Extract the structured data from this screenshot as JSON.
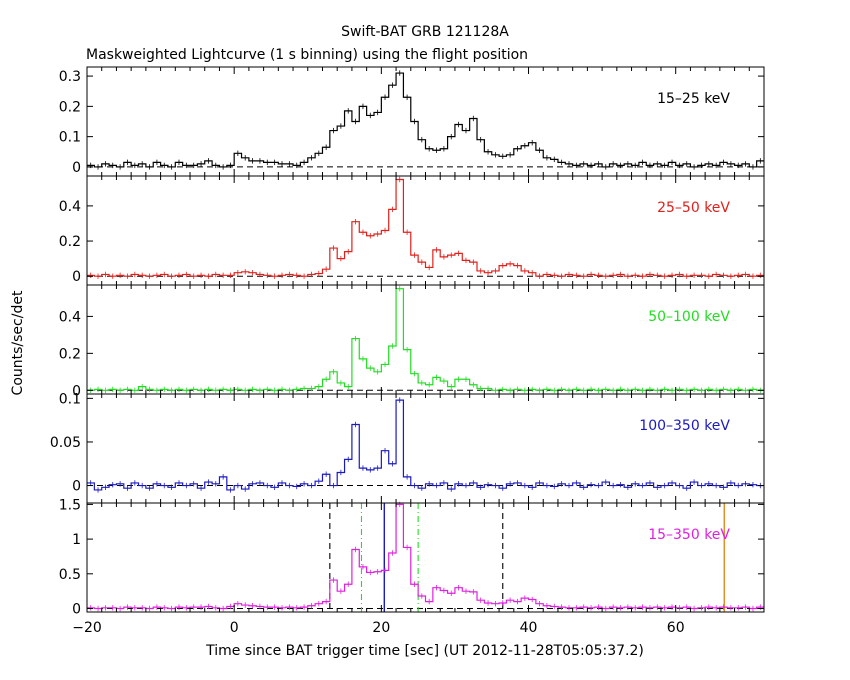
{
  "title": "Swift-BAT GRB 121128A",
  "subtitle": "Maskweighted Lightcurve (1 s binning) using the flight position",
  "xlabel": "Time since BAT trigger time [sec] (UT 2012-11-28T05:05:37.2)",
  "ylabel": "Counts/sec/det",
  "chart_data": {
    "type": "line",
    "title": "Swift-BAT GRB 121128A",
    "subtitle": "Maskweighted Lightcurve (1 s binning) using the flight position",
    "xlabel": "Time since BAT trigger time [sec] (UT 2012-11-28T05:05:37.2)",
    "ylabel": "Counts/sec/det",
    "xlim": [
      -20,
      72
    ],
    "x_ticks": [
      -20,
      0,
      20,
      40,
      60
    ],
    "x_tick_labels": [
      "−20",
      "0",
      "20",
      "40",
      "60"
    ],
    "panels": [
      {
        "name": "15–25 keV",
        "color": "#000000",
        "ylim": [
          -0.03,
          0.33
        ],
        "y_ticks": [
          0,
          0.1,
          0.2,
          0.3
        ],
        "y_tick_labels": [
          "0",
          "0.1",
          "0.2",
          "0.3"
        ],
        "series": [
          {
            "x0": -20,
            "dx": 1,
            "values": [
              0.005,
              0.0,
              0.01,
              0.005,
              0.0,
              0.015,
              0.005,
              0.01,
              0.0,
              0.015,
              0.005,
              0.0,
              0.015,
              0.005,
              0.005,
              0.01,
              0.02,
              0.005,
              0.0,
              0.005,
              0.045,
              0.03,
              0.02,
              0.02,
              0.015,
              0.015,
              0.01,
              0.01,
              0.005,
              0.015,
              0.03,
              0.045,
              0.065,
              0.12,
              0.135,
              0.185,
              0.15,
              0.2,
              0.17,
              0.18,
              0.23,
              0.27,
              0.31,
              0.23,
              0.15,
              0.09,
              0.06,
              0.055,
              0.06,
              0.1,
              0.14,
              0.12,
              0.16,
              0.09,
              0.05,
              0.04,
              0.035,
              0.04,
              0.06,
              0.07,
              0.08,
              0.055,
              0.03,
              0.025,
              0.015,
              0.01,
              0.005,
              0.01,
              0.005,
              0.01,
              0.0,
              0.01,
              0.005,
              0.01,
              0.005,
              0.015,
              0.005,
              0.01,
              0.005,
              0.015,
              0.005,
              0.01,
              0.0,
              0.005,
              0.01,
              0.005,
              0.015,
              0.01,
              0.005,
              0.01,
              0.0,
              0.02
            ]
          }
        ]
      },
      {
        "name": "25–50 keV",
        "color": "#e0201b",
        "ylim": [
          -0.05,
          0.57
        ],
        "y_ticks": [
          0,
          0.2,
          0.4
        ],
        "y_tick_labels": [
          "0",
          "0.2",
          "0.4"
        ],
        "series": [
          {
            "x0": -20,
            "dx": 1,
            "values": [
              0.005,
              0.0,
              0.01,
              0.0,
              0.005,
              0.0,
              0.01,
              0.005,
              0.0,
              0.005,
              0.01,
              0.0,
              0.005,
              0.01,
              0.0,
              0.005,
              0.0,
              0.01,
              0.005,
              0.005,
              0.02,
              0.025,
              0.02,
              0.01,
              0.005,
              0.0,
              0.005,
              0.01,
              0.005,
              0.0,
              0.01,
              0.015,
              0.04,
              0.16,
              0.1,
              0.14,
              0.31,
              0.25,
              0.23,
              0.24,
              0.26,
              0.38,
              0.55,
              0.25,
              0.12,
              0.08,
              0.05,
              0.15,
              0.11,
              0.12,
              0.13,
              0.09,
              0.08,
              0.03,
              0.02,
              0.03,
              0.06,
              0.07,
              0.06,
              0.03,
              0.02,
              0.0,
              0.01,
              0.005,
              0.0,
              0.01,
              0.005,
              0.0,
              0.01,
              0.005,
              0.0,
              0.005,
              0.01,
              0.0,
              0.005,
              0.0,
              0.01,
              0.005,
              0.0,
              0.005,
              0.01,
              0.0,
              0.005,
              0.005,
              0.0,
              0.01,
              0.005,
              0.0,
              0.005,
              0.01,
              0.0,
              0.005
            ]
          }
        ]
      },
      {
        "name": "50–100 keV",
        "color": "#22dd22",
        "ylim": [
          -0.02,
          0.57
        ],
        "y_ticks": [
          0,
          0.2,
          0.4
        ],
        "y_tick_labels": [
          "0",
          "0.2",
          "0.4"
        ],
        "series": [
          {
            "x0": -20,
            "dx": 1,
            "values": [
              0.0,
              0.005,
              0.0,
              0.005,
              0.0,
              0.005,
              0.0,
              0.02,
              0.005,
              0.0,
              0.005,
              0.0,
              0.005,
              0.0,
              0.005,
              0.0,
              0.005,
              0.0,
              0.005,
              0.0,
              0.005,
              0.0,
              0.005,
              0.0,
              0.005,
              0.0,
              0.005,
              0.0,
              0.005,
              0.01,
              0.01,
              0.02,
              0.06,
              0.1,
              0.04,
              0.02,
              0.28,
              0.17,
              0.12,
              0.1,
              0.14,
              0.24,
              0.55,
              0.22,
              0.09,
              0.04,
              0.03,
              0.07,
              0.05,
              0.02,
              0.06,
              0.06,
              0.03,
              0.01,
              0.01,
              0.0,
              0.005,
              0.0,
              0.005,
              0.0,
              0.005,
              0.0,
              0.005,
              0.0,
              0.005,
              0.0,
              0.005,
              0.0,
              0.005,
              0.0,
              0.005,
              0.0,
              0.005,
              0.0,
              0.005,
              0.0,
              0.005,
              0.0,
              0.005,
              0.0,
              0.005,
              0.0,
              0.005,
              0.0,
              0.005,
              0.0,
              0.005,
              0.0,
              0.005,
              0.0,
              0.005,
              0.0
            ]
          }
        ]
      },
      {
        "name": "100–350 keV",
        "color": "#1a1abf",
        "ylim": [
          -0.02,
          0.105
        ],
        "y_ticks": [
          0,
          0.05,
          0.1
        ],
        "y_tick_labels": [
          "0",
          "0.05",
          "0.1"
        ],
        "series": [
          {
            "x0": -20,
            "dx": 1,
            "values": [
              0.003,
              -0.005,
              -0.002,
              0.001,
              0.002,
              -0.003,
              0.003,
              0.0,
              -0.003,
              0.002,
              0.0,
              -0.002,
              0.003,
              0.0,
              0.002,
              -0.003,
              0.004,
              0.002,
              0.01,
              -0.005,
              0.0,
              -0.004,
              0.002,
              0.003,
              0.0,
              -0.002,
              0.003,
              0.0,
              -0.001,
              0.002,
              0.0,
              0.005,
              0.013,
              0.0,
              0.015,
              0.03,
              0.07,
              0.02,
              0.018,
              0.02,
              0.04,
              0.025,
              0.098,
              0.01,
              0.0,
              -0.003,
              0.002,
              0.0,
              0.003,
              -0.004,
              0.002,
              0.0,
              0.003,
              -0.002,
              0.001,
              0.0,
              -0.003,
              0.002,
              0.003,
              0.0,
              -0.002,
              0.003,
              0.0,
              -0.001,
              0.002,
              0.0,
              0.003,
              -0.002,
              0.001,
              0.0,
              0.004,
              0.0,
              0.001,
              -0.002,
              0.002,
              0.0,
              0.003,
              -0.002,
              0.0,
              0.003,
              0.0,
              -0.003,
              0.004,
              0.0,
              0.002,
              0.0,
              -0.002,
              0.003,
              0.0,
              0.002,
              0.001,
              0.0
            ]
          }
        ]
      },
      {
        "name": "15–350 keV",
        "color": "#e020e0",
        "ylim": [
          -0.05,
          1.52
        ],
        "y_ticks": [
          0,
          0.5,
          1,
          1.5
        ],
        "y_tick_labels": [
          "0",
          "0.5",
          "1",
          "1.5"
        ],
        "series": [
          {
            "x0": -20,
            "dx": 1,
            "values": [
              0.01,
              0.0,
              0.01,
              0.01,
              0.0,
              0.02,
              0.01,
              0.01,
              0.0,
              0.02,
              0.01,
              0.0,
              0.02,
              0.01,
              0.02,
              0.02,
              0.03,
              0.01,
              0.0,
              0.03,
              0.07,
              0.05,
              0.04,
              0.03,
              0.02,
              0.02,
              0.01,
              0.02,
              0.01,
              0.02,
              0.04,
              0.07,
              0.1,
              0.41,
              0.25,
              0.35,
              0.85,
              0.6,
              0.52,
              0.53,
              0.55,
              0.8,
              1.5,
              0.88,
              0.35,
              0.18,
              0.1,
              0.3,
              0.26,
              0.22,
              0.3,
              0.25,
              0.24,
              0.12,
              0.08,
              0.07,
              0.08,
              0.12,
              0.1,
              0.15,
              0.13,
              0.07,
              0.04,
              0.03,
              0.02,
              0.01,
              0.01,
              0.02,
              0.01,
              0.02,
              0.0,
              0.02,
              0.01,
              0.02,
              0.01,
              0.02,
              0.01,
              0.02,
              0.01,
              0.02,
              0.01,
              0.02,
              0.0,
              0.01,
              0.02,
              0.01,
              0.02,
              0.01,
              0.01,
              0.02,
              0.0,
              0.02
            ]
          }
        ],
        "vlines": [
          {
            "x": 13.0,
            "color": "#000000",
            "style": "dash"
          },
          {
            "x": 36.5,
            "color": "#000000",
            "style": "dash"
          },
          {
            "x": 17.3,
            "color": "#22dd22",
            "style": "dashdot"
          },
          {
            "x": 25.0,
            "color": "#22dd22",
            "style": "dashdot"
          },
          {
            "x": 20.4,
            "color": "#1a1abf",
            "style": "solid"
          },
          {
            "x": 66.6,
            "color": "#e08a20",
            "style": "solid"
          }
        ]
      }
    ]
  }
}
